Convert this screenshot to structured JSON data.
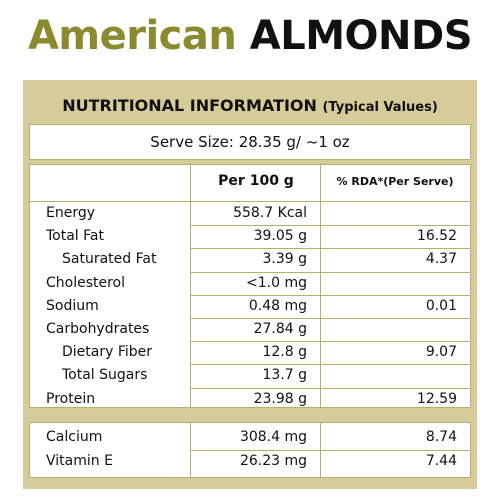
{
  "headline": {
    "brand": "American",
    "product": "ALMONDS"
  },
  "label": {
    "title": "NUTRITIONAL INFORMATION",
    "subtitle": "(Typical Values)",
    "serve_size": "Serve Size: 28.35 g/ ~1 oz"
  },
  "table": {
    "col_per100": "Per 100 g",
    "col_rda": "% RDA*(Per Serve)",
    "rows": [
      {
        "name": "Energy",
        "value": "558.7 Kcal",
        "rda": "",
        "indent": false
      },
      {
        "name": "Total Fat",
        "value": "39.05 g",
        "rda": "16.52",
        "indent": false
      },
      {
        "name": "Saturated Fat",
        "value": "3.39 g",
        "rda": "4.37",
        "indent": true
      },
      {
        "name": "Cholesterol",
        "value": "<1.0 mg",
        "rda": "",
        "indent": false
      },
      {
        "name": "Sodium",
        "value": "0.48 mg",
        "rda": "0.01",
        "indent": false
      },
      {
        "name": "Carbohydrates",
        "value": "27.84 g",
        "rda": "",
        "indent": false
      },
      {
        "name": "Dietary Fiber",
        "value": "12.8 g",
        "rda": "9.07",
        "indent": true
      },
      {
        "name": "Total Sugars",
        "value": "13.7 g",
        "rda": "",
        "indent": true
      },
      {
        "name": "Protein",
        "value": "23.98 g",
        "rda": "12.59",
        "indent": false
      }
    ],
    "minerals": [
      {
        "name": "Calcium",
        "value": "308.4 mg",
        "rda": "8.74"
      },
      {
        "name": "Vitamin E",
        "value": "26.23 mg",
        "rda": "7.44"
      }
    ]
  },
  "colors": {
    "brand_olive": "#8c8a2e",
    "panel_beige": "#d6cc9a",
    "border": "#b9ad70"
  }
}
